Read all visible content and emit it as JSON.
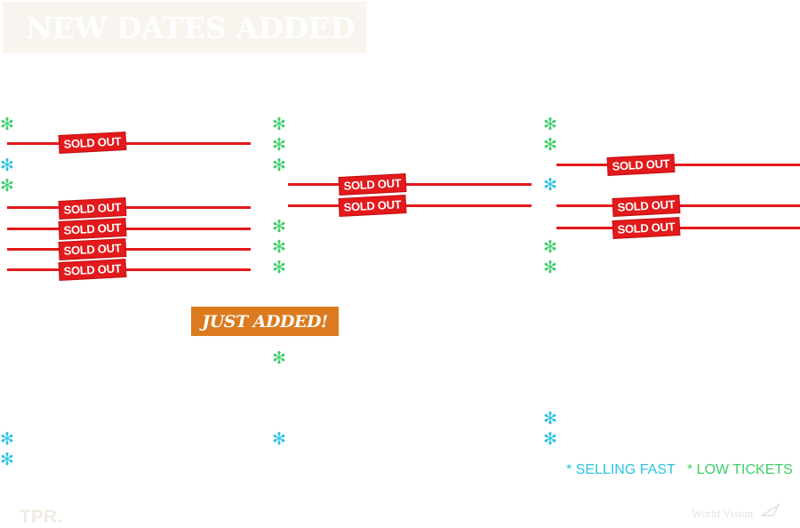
{
  "header": {
    "title": "NEW DATES ADDED"
  },
  "badges": {
    "sold_out": "SOLD OUT",
    "just_added": "JUST ADDED!"
  },
  "legend": {
    "selling_fast": "* SELLING FAST",
    "low_tickets": "* LOW TICKETS",
    "selling_fast_color": "#2cc3e2",
    "low_tickets_color": "#3ccf6a"
  },
  "colors": {
    "sold_out_red": "#e3191b",
    "just_added_orange": "#db7a1e",
    "banner_bg": "#f8f4ee"
  },
  "icons": {
    "marker": "asterisk-icon"
  },
  "footer": {
    "left_logo": "TPR.",
    "right_logo": "World Vision"
  }
}
